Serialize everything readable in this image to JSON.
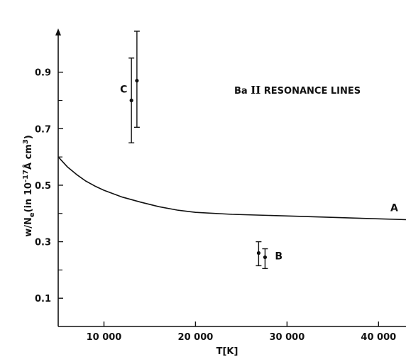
{
  "chart_data": {
    "type": "line",
    "title": "",
    "heading_parts": [
      "Ba ",
      "II",
      " RESONANCE LINES"
    ],
    "xlabel": "T[K]",
    "ylabel_parts": [
      "w/N",
      "e",
      "(in 10",
      "-17",
      "Å cm",
      "3",
      ")"
    ],
    "xlim": [
      5000,
      43000
    ],
    "ylim": [
      0,
      1.05
    ],
    "x_ticks": [
      10000,
      20000,
      30000,
      40000
    ],
    "x_tick_labels": [
      "10 000",
      "20 000",
      "30 000",
      "40 000"
    ],
    "y_ticks": [
      0.1,
      0.3,
      0.5,
      0.7,
      0.9
    ],
    "y_tick_labels": [
      "0.1",
      "0.3",
      "0.5",
      "0.7",
      "0.9"
    ],
    "y_minor_ticks": [
      0.2,
      0.4,
      0.6,
      0.8
    ],
    "grid": false,
    "curve": {
      "label": "A",
      "x": [
        5000,
        6000,
        7000,
        8000,
        9000,
        10000,
        12000,
        14000,
        16000,
        18000,
        20000,
        24000,
        28000,
        32000,
        36000,
        40000,
        43000
      ],
      "y": [
        0.6,
        0.565,
        0.538,
        0.515,
        0.497,
        0.482,
        0.458,
        0.44,
        0.424,
        0.412,
        0.404,
        0.397,
        0.393,
        0.389,
        0.385,
        0.381,
        0.378
      ]
    },
    "point_groups": [
      {
        "label": "C",
        "points": [
          {
            "x": 13000,
            "y": 0.8,
            "ylow": 0.65,
            "yhigh": 0.95
          },
          {
            "x": 13600,
            "y": 0.87,
            "ylow": 0.705,
            "yhigh": 1.045
          }
        ]
      },
      {
        "label": "B",
        "points": [
          {
            "x": 26900,
            "y": 0.26,
            "ylow": 0.215,
            "yhigh": 0.3
          },
          {
            "x": 27600,
            "y": 0.245,
            "ylow": 0.205,
            "yhigh": 0.275
          }
        ]
      }
    ]
  }
}
